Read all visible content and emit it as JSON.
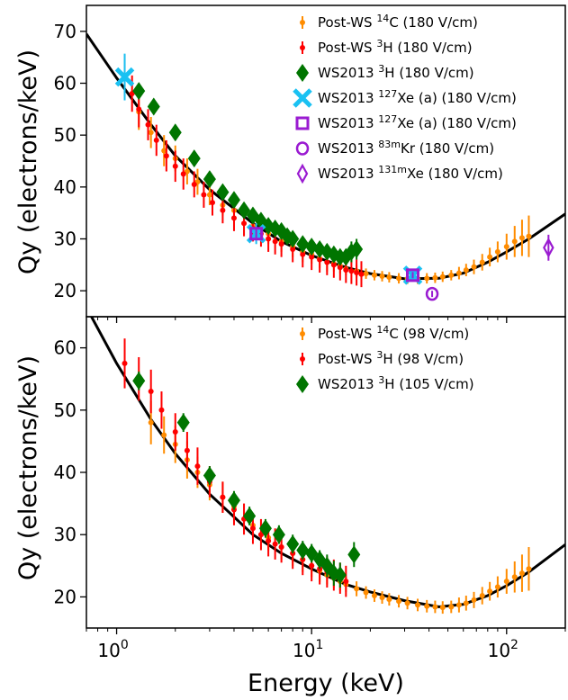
{
  "chart_data": [
    {
      "type": "scatter",
      "xscale": "log",
      "xlim": [
        0.7,
        200
      ],
      "ylim": [
        15,
        75
      ],
      "ylabel": "Qy (electrons/keV)",
      "yticks": [
        20,
        30,
        40,
        50,
        60,
        70
      ],
      "legend_position": "top-right",
      "model_curve": {
        "x": [
          0.7,
          1.0,
          1.5,
          2.0,
          3.0,
          5.0,
          7.0,
          10.0,
          15.0,
          20.0,
          30.0,
          45.0,
          60.0,
          80.0,
          100.0,
          130.0,
          200.0
        ],
        "y": [
          69.5,
          61.0,
          52.0,
          46.0,
          39.5,
          33.0,
          29.5,
          26.8,
          24.5,
          23.3,
          22.3,
          22.4,
          23.4,
          25.5,
          27.5,
          30.0,
          34.8
        ]
      },
      "series": [
        {
          "name": "Post-WS ",
          "sup": "14",
          "name_tail": "C (180 V/cm)",
          "marker": "dot",
          "color": "#ff8c00",
          "x": [
            1.3,
            1.5,
            1.75,
            2.0,
            2.3,
            2.6,
            3.0,
            3.5,
            4.0,
            5.0,
            6.0,
            7.0,
            8.0,
            9.0,
            10.0,
            11.0,
            12.0,
            13.0,
            14.0,
            15.0,
            17.0,
            19.0,
            21.0,
            23.0,
            25.0,
            28.0,
            31.0,
            35.0,
            39.0,
            43.0,
            47.0,
            52.0,
            57.0,
            62.0,
            68.0,
            75.0,
            82.0,
            90.0,
            100.0,
            110.0,
            120.0,
            130.0
          ],
          "y": [
            54.5,
            50.5,
            47.0,
            45.5,
            43.0,
            41.0,
            38.5,
            36.5,
            35.5,
            32.5,
            31.0,
            29.5,
            28.5,
            27.5,
            27.0,
            26.2,
            25.5,
            25.2,
            24.8,
            24.2,
            23.8,
            23.3,
            23.0,
            22.8,
            22.6,
            22.4,
            22.3,
            22.3,
            22.4,
            22.5,
            22.7,
            23.0,
            23.4,
            24.0,
            24.6,
            25.5,
            26.5,
            27.5,
            28.5,
            29.5,
            30.2,
            30.5
          ],
          "err": [
            3.5,
            3.0,
            3.0,
            2.5,
            2.5,
            2.5,
            2.0,
            2.0,
            2.0,
            2.0,
            2.0,
            2.0,
            2.0,
            2.0,
            1.8,
            1.8,
            1.8,
            1.5,
            1.5,
            1.2,
            1.2,
            1.0,
            1.0,
            1.0,
            1.0,
            1.0,
            1.0,
            1.0,
            1.0,
            1.0,
            1.0,
            1.0,
            1.2,
            1.2,
            1.4,
            1.6,
            1.8,
            2.0,
            2.5,
            3.0,
            3.5,
            4.0
          ]
        },
        {
          "name": "Post-WS ",
          "sup": "3",
          "name_tail": "H (180 V/cm)",
          "marker": "dot",
          "color": "#ff0000",
          "x": [
            1.1,
            1.2,
            1.3,
            1.45,
            1.6,
            1.8,
            2.0,
            2.2,
            2.5,
            2.8,
            3.1,
            3.5,
            4.0,
            4.5,
            5.0,
            5.5,
            6.0,
            6.5,
            7.0,
            8.0,
            9.0,
            10.0,
            11.0,
            12.0,
            13.0,
            14.0,
            15.0,
            16.0,
            17.0,
            18.0
          ],
          "y": [
            61.5,
            58.0,
            55.0,
            52.0,
            49.0,
            46.0,
            44.0,
            42.5,
            40.5,
            38.5,
            37.0,
            35.5,
            34.0,
            33.0,
            32.0,
            31.0,
            30.0,
            29.5,
            29.0,
            28.0,
            27.0,
            26.5,
            26.0,
            25.5,
            25.0,
            24.5,
            24.0,
            23.8,
            23.5,
            23.2
          ],
          "err": [
            4.0,
            3.5,
            3.5,
            3.0,
            3.0,
            3.0,
            3.0,
            3.0,
            2.5,
            2.5,
            2.5,
            2.5,
            2.5,
            2.5,
            2.5,
            2.5,
            2.5,
            2.5,
            2.5,
            2.5,
            2.5,
            2.5,
            2.5,
            2.5,
            2.5,
            2.5,
            2.5,
            2.5,
            2.5,
            2.5
          ]
        },
        {
          "name": "WS2013 ",
          "sup": "3",
          "name_tail": "H (180 V/cm)",
          "marker": "diamond",
          "color": "#007500",
          "x": [
            1.3,
            1.55,
            2.0,
            2.5,
            3.0,
            3.5,
            4.0,
            4.5,
            5.0,
            5.5,
            6.0,
            6.5,
            7.0,
            7.5,
            8.0,
            9.0,
            10.0,
            11.0,
            12.0,
            13.0,
            14.0,
            15.0,
            16.0,
            17.0
          ],
          "y": [
            58.5,
            55.5,
            50.5,
            45.5,
            41.5,
            39.0,
            37.5,
            35.5,
            34.5,
            33.5,
            32.5,
            32.0,
            31.5,
            30.5,
            30.0,
            29.0,
            28.5,
            28.0,
            27.5,
            27.0,
            26.5,
            26.5,
            27.5,
            28.0
          ],
          "err": [
            1.5,
            1.5,
            1.5,
            1.5,
            1.5,
            1.2,
            1.2,
            1.2,
            1.2,
            1.2,
            1.2,
            1.2,
            1.2,
            1.2,
            1.2,
            1.2,
            1.2,
            1.2,
            1.2,
            1.2,
            1.2,
            1.5,
            2.0,
            2.0
          ]
        },
        {
          "name": "WS2013 ",
          "sup": "127",
          "name_tail": "Xe (a) (180 V/cm)",
          "marker": "x",
          "color": "#1ac1f2",
          "x": [
            1.1,
            5.2,
            33.0
          ],
          "y": [
            61.2,
            31.0,
            23.0
          ],
          "err": [
            4.5,
            2.0,
            1.0
          ]
        },
        {
          "name": "WS2013 ",
          "sup": "127",
          "name_tail": "Xe (a) (180 V/cm)",
          "marker": "square",
          "color": "#9a1bd1",
          "x": [
            5.2,
            33.0
          ],
          "y": [
            31.0,
            23.0
          ],
          "err": [
            0.8,
            0.6
          ]
        },
        {
          "name": "WS2013 ",
          "sup": "83m",
          "name_tail": "Kr (180 V/cm)",
          "marker": "circle",
          "color": "#9a1bd1",
          "x": [
            41.5
          ],
          "y": [
            19.4
          ],
          "err": [
            0.6
          ]
        },
        {
          "name": "WS2013 ",
          "sup": "131m",
          "name_tail": "Xe (180 V/cm)",
          "marker": "thin_diamond",
          "color": "#9a1bd1",
          "x": [
            164.0
          ],
          "y": [
            28.3
          ],
          "err": [
            2.5
          ]
        }
      ]
    },
    {
      "type": "scatter",
      "xscale": "log",
      "xlim": [
        0.7,
        200
      ],
      "ylim": [
        15,
        65
      ],
      "xlabel": "Energy (keV)",
      "ylabel": "Qy (electrons/keV)",
      "yticks": [
        20,
        30,
        40,
        50,
        60
      ],
      "xticks": [
        1,
        10,
        100
      ],
      "xtick_labels": [
        {
          "base": "10",
          "exp": "0"
        },
        {
          "base": "10",
          "exp": "1"
        },
        {
          "base": "10",
          "exp": "2"
        }
      ],
      "legend_position": "top-right",
      "model_curve": {
        "x": [
          0.7,
          1.0,
          1.5,
          2.0,
          3.0,
          5.0,
          7.0,
          10.0,
          15.0,
          20.0,
          30.0,
          45.0,
          60.0,
          80.0,
          100.0,
          130.0,
          200.0
        ],
        "y": [
          66.5,
          57.5,
          48.5,
          43.0,
          36.5,
          30.0,
          27.0,
          24.5,
          22.0,
          20.8,
          19.4,
          18.4,
          18.8,
          20.2,
          21.8,
          24.0,
          28.4
        ]
      },
      "series": [
        {
          "name": "Post-WS ",
          "sup": "14",
          "name_tail": "C (98 V/cm)",
          "marker": "dot",
          "color": "#ff8c00",
          "x": [
            1.5,
            1.75,
            2.0,
            2.3,
            2.6,
            3.0,
            3.5,
            4.0,
            5.0,
            6.0,
            7.0,
            8.0,
            9.0,
            10.0,
            11.0,
            12.0,
            13.0,
            14.0,
            15.0,
            17.0,
            19.0,
            21.0,
            23.0,
            25.0,
            28.0,
            31.0,
            35.0,
            39.0,
            43.0,
            47.0,
            52.0,
            57.0,
            62.0,
            68.0,
            75.0,
            82.0,
            90.0,
            100.0,
            110.0,
            120.0,
            130.0
          ],
          "y": [
            48.0,
            46.0,
            44.5,
            42.0,
            40.0,
            38.0,
            36.0,
            34.5,
            31.5,
            29.5,
            28.0,
            27.0,
            26.0,
            25.0,
            24.2,
            23.5,
            23.0,
            22.5,
            22.0,
            21.3,
            20.7,
            20.2,
            19.9,
            19.6,
            19.3,
            19.0,
            18.7,
            18.5,
            18.4,
            18.3,
            18.4,
            18.7,
            19.0,
            19.5,
            20.2,
            20.9,
            21.6,
            22.5,
            23.2,
            23.8,
            24.5
          ],
          "err": [
            3.5,
            3.0,
            3.0,
            3.0,
            2.5,
            2.5,
            2.5,
            2.0,
            2.0,
            2.0,
            2.0,
            2.0,
            2.0,
            1.8,
            1.8,
            1.5,
            1.5,
            1.5,
            1.2,
            1.2,
            1.0,
            1.0,
            1.0,
            1.0,
            1.0,
            1.0,
            1.0,
            1.0,
            1.0,
            1.0,
            1.0,
            1.2,
            1.2,
            1.3,
            1.4,
            1.5,
            1.7,
            2.0,
            2.5,
            3.0,
            3.5
          ]
        },
        {
          "name": "Post-WS ",
          "sup": "3",
          "name_tail": "H (98 V/cm)",
          "marker": "dot",
          "color": "#ff0000",
          "x": [
            1.1,
            1.3,
            1.5,
            1.7,
            2.0,
            2.3,
            2.6,
            3.0,
            3.5,
            4.0,
            4.5,
            5.0,
            5.5,
            6.0,
            6.5,
            7.0,
            8.0,
            9.0,
            10.0,
            11.0,
            12.0,
            13.0,
            14.0,
            15.0
          ],
          "y": [
            57.5,
            55.0,
            53.0,
            50.0,
            46.5,
            43.5,
            41.0,
            38.5,
            36.0,
            34.0,
            32.5,
            31.0,
            30.0,
            29.0,
            28.5,
            28.0,
            27.0,
            26.0,
            25.0,
            24.5,
            24.0,
            23.5,
            23.0,
            22.5
          ],
          "err": [
            4.0,
            3.5,
            3.5,
            3.0,
            3.0,
            3.0,
            3.0,
            2.5,
            2.5,
            2.5,
            2.5,
            2.5,
            2.5,
            2.5,
            2.5,
            2.5,
            2.5,
            2.5,
            2.5,
            2.5,
            2.5,
            2.5,
            2.5,
            2.5
          ]
        },
        {
          "name": "WS2013 ",
          "sup": "3",
          "name_tail": "H (105 V/cm)",
          "marker": "diamond",
          "color": "#007500",
          "x": [
            1.3,
            2.2,
            3.0,
            4.0,
            4.8,
            5.8,
            6.8,
            8.0,
            9.0,
            10.0,
            11.0,
            12.0,
            13.0,
            14.0,
            16.5
          ],
          "y": [
            54.7,
            48.0,
            39.5,
            35.5,
            33.0,
            31.0,
            30.0,
            28.5,
            27.5,
            27.0,
            26.0,
            25.0,
            23.8,
            23.5,
            26.8
          ],
          "err": [
            1.5,
            1.5,
            1.5,
            1.5,
            1.5,
            1.5,
            1.5,
            1.5,
            1.5,
            1.5,
            1.5,
            1.8,
            2.0,
            2.0,
            2.0
          ]
        }
      ]
    }
  ]
}
